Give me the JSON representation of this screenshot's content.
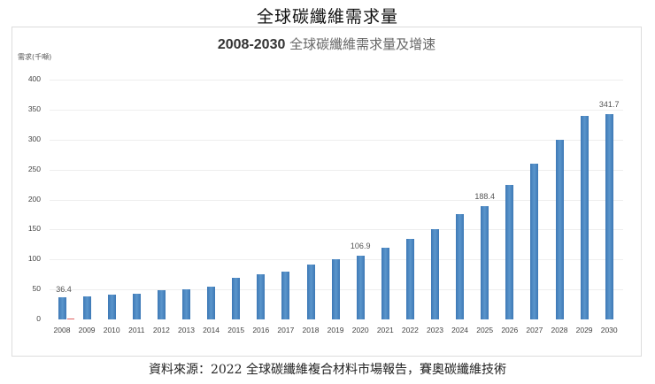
{
  "page": {
    "title": "全球碳纖維需求量",
    "source": "資料來源：2022 全球碳纖維複合材料市場報告，賽奧碳纖維技術"
  },
  "chart": {
    "title_years": "2008-2030",
    "title_text": " 全球碳纖維需求量及增速",
    "y_axis_label": "需求(千噸)"
  },
  "colors": {
    "bar": "#4a86c0",
    "marker": "#e06060",
    "grid": "#eeeeee"
  },
  "chart_data": {
    "type": "bar",
    "title": "2008-2030 全球碳纖維需求量及增速",
    "xlabel": "",
    "ylabel": "需求(千噸)",
    "ylim": [
      0,
      400
    ],
    "yticks": [
      0,
      50,
      100,
      150,
      200,
      250,
      300,
      350,
      400
    ],
    "grid": true,
    "legend": null,
    "categories": [
      "2008",
      "2009",
      "2010",
      "2011",
      "2012",
      "2013",
      "2014",
      "2015",
      "2016",
      "2017",
      "2018",
      "2019",
      "2020",
      "2021",
      "2022",
      "2023",
      "2024",
      "2025",
      "2026",
      "2027",
      "2028",
      "2029",
      "2030"
    ],
    "values": [
      36.4,
      39,
      41,
      43,
      48,
      50,
      55,
      70,
      76,
      80,
      91,
      100,
      106.9,
      120,
      134,
      150,
      175,
      188.4,
      224,
      260,
      300,
      340,
      341.7
    ],
    "data_labels": {
      "2008": "36.4",
      "2020": "106.9",
      "2025": "188.4",
      "2030": "341.7"
    }
  }
}
